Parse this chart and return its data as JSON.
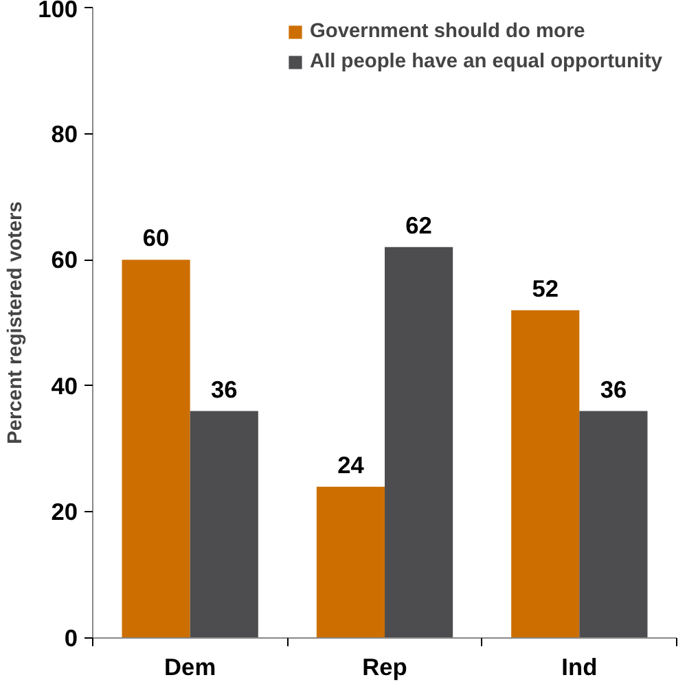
{
  "chart_data": {
    "type": "bar",
    "ylabel": "Percent registered voters",
    "categories": [
      "Dem",
      "Rep",
      "Ind"
    ],
    "series": [
      {
        "name": "Government should do more",
        "color": "#cc6f00",
        "values": [
          60,
          24,
          52
        ]
      },
      {
        "name": "All people have an equal opportunity",
        "color": "#4d4d4f",
        "values": [
          36,
          62,
          36
        ]
      }
    ],
    "ylim": [
      0,
      100
    ],
    "yticks": [
      0,
      20,
      40,
      60,
      80,
      100
    ],
    "grid": false,
    "legend": "top",
    "data_labels": true
  }
}
